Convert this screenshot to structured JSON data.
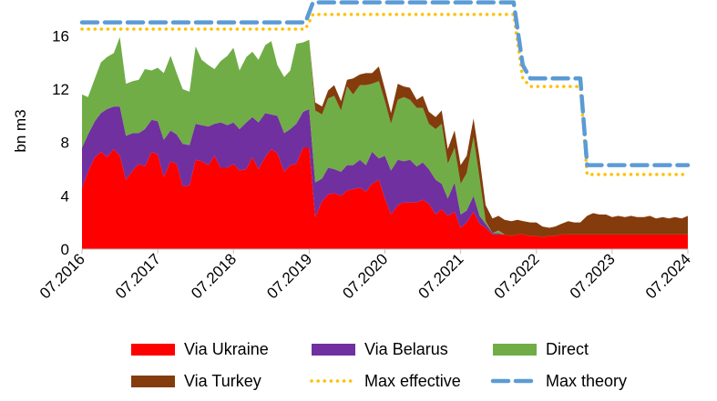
{
  "chart_data": {
    "type": "area",
    "title": "",
    "xlabel": "",
    "ylabel": "bn m3",
    "ylim": [
      0,
      18
    ],
    "xlim": [
      2016.5,
      2024.5
    ],
    "yticks": [
      0,
      4,
      8,
      12,
      16
    ],
    "xticks": [
      {
        "value": 2016.5,
        "label": "07.2016"
      },
      {
        "value": 2017.5,
        "label": "07.2017"
      },
      {
        "value": 2018.5,
        "label": "07.2018"
      },
      {
        "value": 2019.5,
        "label": "07.2019"
      },
      {
        "value": 2020.5,
        "label": "07.2020"
      },
      {
        "value": 2021.5,
        "label": "07.2021"
      },
      {
        "value": 2022.5,
        "label": "07.2022"
      },
      {
        "value": 2023.5,
        "label": "07.2023"
      },
      {
        "value": 2024.5,
        "label": "07.2024"
      }
    ],
    "grid": false,
    "legend_position": "bottom",
    "x": [
      2016.5,
      2016.58,
      2016.67,
      2016.75,
      2016.83,
      2016.92,
      2017.0,
      2017.08,
      2017.17,
      2017.25,
      2017.33,
      2017.42,
      2017.5,
      2017.58,
      2017.67,
      2017.75,
      2017.83,
      2017.92,
      2018.0,
      2018.08,
      2018.17,
      2018.25,
      2018.33,
      2018.42,
      2018.5,
      2018.58,
      2018.67,
      2018.75,
      2018.83,
      2018.92,
      2019.0,
      2019.08,
      2019.17,
      2019.25,
      2019.33,
      2019.42,
      2019.5,
      2019.58,
      2019.67,
      2019.75,
      2019.83,
      2019.92,
      2020.0,
      2020.08,
      2020.17,
      2020.25,
      2020.33,
      2020.42,
      2020.5,
      2020.58,
      2020.67,
      2020.75,
      2020.83,
      2020.92,
      2021.0,
      2021.08,
      2021.17,
      2021.25,
      2021.33,
      2021.42,
      2021.5,
      2021.58,
      2021.67,
      2021.75,
      2021.83,
      2021.92,
      2022.0,
      2022.08,
      2022.17,
      2022.25,
      2022.33,
      2022.42,
      2022.5,
      2022.58,
      2022.67,
      2022.75,
      2022.83,
      2022.92,
      2023.0,
      2023.08,
      2023.17,
      2023.25,
      2023.33,
      2023.42,
      2023.5,
      2023.58,
      2023.67,
      2023.75,
      2023.83,
      2023.92,
      2024.0,
      2024.08,
      2024.17,
      2024.25,
      2024.33,
      2024.42,
      2024.5
    ],
    "series": [
      {
        "name": "Via Ukraine",
        "kind": "area",
        "color": "#ff0000",
        "values": [
          4.6,
          5.8,
          6.9,
          7.3,
          6.9,
          7.5,
          7.0,
          5.2,
          5.9,
          6.4,
          6.2,
          7.3,
          7.1,
          5.4,
          6.6,
          6.4,
          4.7,
          4.8,
          6.7,
          6.6,
          6.3,
          7.0,
          6.1,
          6.1,
          6.4,
          5.9,
          6.0,
          6.9,
          6.0,
          6.9,
          7.5,
          7.2,
          5.8,
          6.3,
          6.4,
          7.6,
          7.6,
          2.4,
          3.6,
          4.1,
          4.2,
          4.0,
          4.4,
          4.5,
          4.6,
          4.3,
          4.9,
          5.2,
          3.8,
          2.6,
          3.3,
          3.5,
          3.5,
          3.5,
          3.7,
          3.4,
          2.6,
          3.0,
          2.5,
          2.8,
          1.6,
          2.0,
          2.8,
          1.9,
          1.6,
          1.1,
          1.1,
          1.1,
          1.0,
          1.1,
          1.1,
          1.0,
          1.0,
          0.9,
          1.0,
          1.0,
          1.1,
          1.1,
          1.1,
          1.1,
          1.1,
          1.1,
          1.1,
          1.1,
          1.1,
          1.1,
          1.1,
          1.1,
          1.1,
          1.1,
          1.1,
          1.1,
          1.1,
          1.1,
          1.1,
          1.1,
          1.1
        ]
      },
      {
        "name": "Via Belarus",
        "kind": "area",
        "color": "#7030a0",
        "values": [
          3.0,
          2.8,
          2.7,
          2.9,
          3.6,
          3.2,
          3.7,
          3.3,
          2.8,
          2.3,
          2.8,
          2.4,
          2.5,
          2.8,
          2.3,
          2.2,
          3.2,
          3.0,
          2.7,
          2.7,
          2.9,
          2.4,
          3.4,
          3.2,
          3.1,
          3.1,
          3.5,
          3.0,
          3.5,
          3.3,
          2.6,
          2.8,
          2.9,
          2.7,
          3.0,
          2.7,
          2.9,
          2.6,
          1.7,
          2.0,
          1.8,
          1.8,
          1.9,
          1.8,
          2.1,
          2.0,
          2.4,
          1.6,
          3.2,
          3.3,
          3.4,
          3.1,
          3.2,
          2.7,
          2.8,
          2.6,
          2.6,
          1.9,
          1.3,
          2.2,
          1.0,
          0.9,
          1.2,
          0.6,
          0.3,
          0.1,
          0.1,
          0,
          0,
          0,
          0,
          0,
          0,
          0,
          0,
          0,
          0,
          0,
          0,
          0,
          0,
          0,
          0,
          0,
          0,
          0,
          0,
          0,
          0,
          0,
          0,
          0,
          0,
          0,
          0,
          0,
          0
        ]
      },
      {
        "name": "Direct",
        "kind": "area",
        "color": "#70ad47",
        "values": [
          4.0,
          2.8,
          3.2,
          3.8,
          3.9,
          4.0,
          5.2,
          3.9,
          3.9,
          4.0,
          4.5,
          3.7,
          4.0,
          5.0,
          5.6,
          4.6,
          4.1,
          4.0,
          5.8,
          4.9,
          4.6,
          4.1,
          4.6,
          5.2,
          5.6,
          4.4,
          4.9,
          4.9,
          4.7,
          5.1,
          5.5,
          3.8,
          4.2,
          4.4,
          6.0,
          5.2,
          5.2,
          5.4,
          4.8,
          5.2,
          5.5,
          4.6,
          5.9,
          5.3,
          5.6,
          6.0,
          5.1,
          5.8,
          4.1,
          3.5,
          4.5,
          4.8,
          4.5,
          4.4,
          4.1,
          3.4,
          3.8,
          4.5,
          2.6,
          2.6,
          2.3,
          2.8,
          4.4,
          2.8,
          0.2,
          0,
          0.2,
          0,
          0,
          0,
          0,
          0,
          0,
          0,
          0,
          0,
          0,
          0,
          0,
          0,
          0,
          0,
          0,
          0,
          0,
          0,
          0,
          0,
          0,
          0,
          0,
          0,
          0,
          0,
          0,
          0,
          0
        ]
      },
      {
        "name": "Via Turkey",
        "kind": "area",
        "color": "#843c0c",
        "values": [
          0,
          0,
          0,
          0,
          0,
          0,
          0,
          0,
          0,
          0,
          0,
          0,
          0,
          0,
          0,
          0,
          0,
          0,
          0,
          0,
          0,
          0,
          0,
          0,
          0,
          0,
          0,
          0,
          0,
          0,
          0,
          0,
          0,
          0,
          0,
          0,
          0,
          0.6,
          0.6,
          0.6,
          0.8,
          0.7,
          0.5,
          1.2,
          0.8,
          0.9,
          0.8,
          1.1,
          0.9,
          0.8,
          1.2,
          0.8,
          0.9,
          0.6,
          0.9,
          0.9,
          0.9,
          1.0,
          1.1,
          1.3,
          1.4,
          1.3,
          1.4,
          1.5,
          1.2,
          1.1,
          1.1,
          1.1,
          1.1,
          1.1,
          1.0,
          1.0,
          1.0,
          0.8,
          0.6,
          0.7,
          0.8,
          1.0,
          0.9,
          0.9,
          1.4,
          1.6,
          1.5,
          1.5,
          1.3,
          1.4,
          1.3,
          1.4,
          1.3,
          1.3,
          1.4,
          1.2,
          1.3,
          1.2,
          1.3,
          1.2,
          1.4
        ]
      },
      {
        "name": "Max effective",
        "kind": "line",
        "style": "dotted",
        "color": "#ffc000",
        "points": [
          [
            2016.5,
            16.5
          ],
          [
            2019.45,
            16.5
          ],
          [
            2019.55,
            17.6
          ],
          [
            2022.2,
            17.6
          ],
          [
            2022.32,
            12.8
          ],
          [
            2022.42,
            12.2
          ],
          [
            2023.08,
            12.2
          ],
          [
            2023.17,
            5.6
          ],
          [
            2024.5,
            5.6
          ]
        ]
      },
      {
        "name": "Max theory",
        "kind": "line",
        "style": "dashed",
        "color": "#5b9bd5",
        "points": [
          [
            2016.5,
            17.0
          ],
          [
            2019.45,
            17.0
          ],
          [
            2019.55,
            18.5
          ],
          [
            2022.2,
            18.5
          ],
          [
            2022.32,
            13.8
          ],
          [
            2022.42,
            12.8
          ],
          [
            2023.08,
            12.8
          ],
          [
            2023.17,
            6.3
          ],
          [
            2024.5,
            6.3
          ]
        ]
      }
    ]
  }
}
